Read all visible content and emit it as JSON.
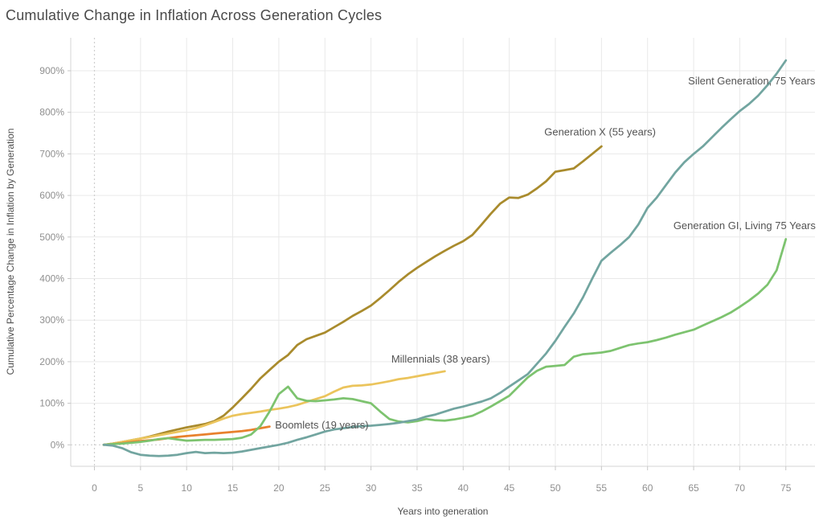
{
  "title": "Cumulative Change in Inflation Across Generation Cycles",
  "chart_data": {
    "type": "line",
    "title": "Cumulative Change in Inflation Across Generation Cycles",
    "xlabel": "Years into generation",
    "ylabel": "Cumulative Percentage Change in Inflation by Generation",
    "x_ticks": [
      0,
      5,
      10,
      15,
      20,
      25,
      30,
      35,
      40,
      45,
      50,
      55,
      60,
      65,
      70,
      75
    ],
    "y_ticks": [
      0,
      100,
      200,
      300,
      400,
      500,
      600,
      700,
      800,
      900
    ],
    "y_tick_suffix": "%",
    "xlim": [
      -2.5,
      79
    ],
    "ylim": [
      -52,
      980
    ],
    "grid": true,
    "zero_lines_dotted": true,
    "legend_position": "inline-labels",
    "series": [
      {
        "name": "generation-x",
        "label": "Generation X (55 years)",
        "color": "#a98b2d",
        "start_year": 1,
        "values": [
          0,
          3,
          7,
          11,
          15,
          20,
          26,
          32,
          37,
          42,
          46,
          50,
          57,
          70,
          90,
          112,
          135,
          160,
          180,
          200,
          216,
          240,
          254,
          262,
          270,
          283,
          296,
          310,
          322,
          335,
          353,
          372,
          392,
          410,
          426,
          440,
          454,
          467,
          479,
          490,
          505,
          530,
          556,
          580,
          595,
          594,
          602,
          617,
          634,
          657,
          661,
          665,
          682,
          700,
          718
        ]
      },
      {
        "name": "millennials",
        "label": "Millennials (38 years)",
        "color": "#ebc45c",
        "start_year": 1,
        "values": [
          0,
          3,
          7,
          11,
          15,
          19,
          23,
          27,
          31,
          35,
          40,
          47,
          55,
          63,
          70,
          74,
          77,
          80,
          84,
          87,
          91,
          96,
          103,
          110,
          117,
          128,
          138,
          142,
          143,
          145,
          149,
          153,
          158,
          161,
          165,
          169,
          173,
          177
        ]
      },
      {
        "name": "boomlets",
        "label": "Boomlets (19 years)",
        "color": "#e8812d",
        "start_year": 1,
        "values": [
          0,
          2,
          4,
          7,
          9,
          11,
          13,
          16,
          19,
          21,
          23,
          25,
          27,
          29,
          31,
          33,
          36,
          40,
          44
        ]
      },
      {
        "name": "generation-gi",
        "label": "Generation GI, Living 75 Years",
        "color": "#7dc36f",
        "start_year": 1,
        "values": [
          0,
          2,
          3,
          5,
          7,
          10,
          14,
          16,
          13,
          10,
          11,
          12,
          12,
          13,
          14,
          17,
          25,
          45,
          80,
          122,
          140,
          112,
          106,
          105,
          107,
          109,
          112,
          110,
          105,
          100,
          80,
          62,
          56,
          54,
          57,
          62,
          59,
          58,
          61,
          65,
          70,
          80,
          92,
          105,
          118,
          140,
          162,
          178,
          188,
          190,
          192,
          212,
          218,
          220,
          222,
          226,
          233,
          240,
          244,
          247,
          252,
          258,
          265,
          271,
          277,
          287,
          297,
          307,
          318,
          332,
          347,
          364,
          385,
          420,
          495
        ]
      },
      {
        "name": "silent-generation",
        "label": "Silent Generation, 75 Years",
        "color": "#72a5a0",
        "start_year": 1,
        "values": [
          0,
          -2,
          -8,
          -18,
          -24,
          -26,
          -27,
          -26,
          -24,
          -20,
          -17,
          -20,
          -19,
          -20,
          -19,
          -16,
          -12,
          -8,
          -4,
          0,
          5,
          12,
          18,
          25,
          32,
          37,
          40,
          43,
          45,
          46,
          48,
          50,
          53,
          57,
          61,
          68,
          73,
          80,
          87,
          92,
          98,
          104,
          112,
          125,
          140,
          155,
          170,
          195,
          220,
          250,
          284,
          316,
          355,
          400,
          443,
          462,
          480,
          500,
          530,
          570,
          595,
          625,
          655,
          680,
          700,
          718,
          740,
          762,
          783,
          803,
          820,
          840,
          865,
          893,
          925
        ]
      }
    ],
    "annotations": [
      {
        "text": "Silent Generation, 75 Years",
        "year": 64.4,
        "pct": 875
      },
      {
        "text": "Generation X (55 years)",
        "year": 48.8,
        "pct": 752
      },
      {
        "text": "Generation GI, Living 75 Years",
        "year": 62.8,
        "pct": 527
      },
      {
        "text": "Millennials (38 years)",
        "year": 32.2,
        "pct": 206
      },
      {
        "text": "Boomlets (19 years)",
        "year": 19.6,
        "pct": 47
      }
    ]
  },
  "colors": {
    "grid": "#e9e9e9",
    "zero_line": "#cfcfcf",
    "axis_line": "#d4d4d4",
    "tick": "#c7c7c7"
  }
}
